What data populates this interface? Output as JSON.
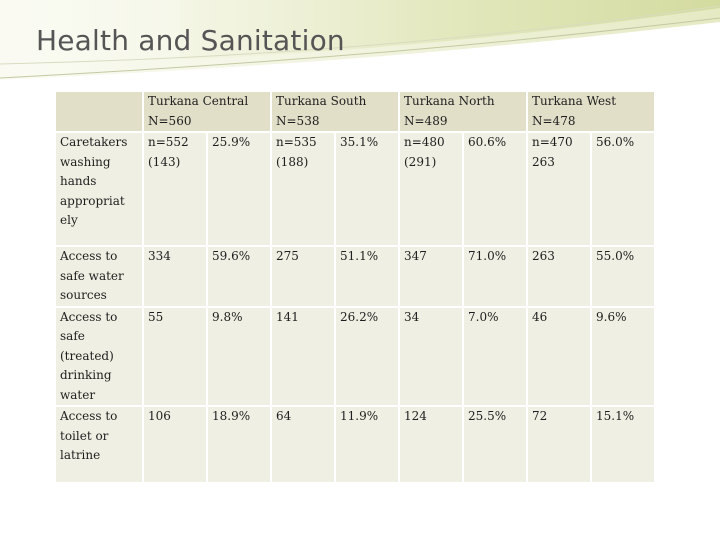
{
  "slide": {
    "title": "Health and Sanitation"
  },
  "table": {
    "regions": [
      {
        "name": "Turkana Central",
        "n": "N=560"
      },
      {
        "name": "Turkana South",
        "n": "N=538"
      },
      {
        "name": "Turkana North",
        "n": "N=489"
      },
      {
        "name": "Turkana West",
        "n": "N=478"
      }
    ],
    "rows": [
      {
        "label": "Caretakers washing hands appropriat ely",
        "cells": [
          {
            "count": "n=552",
            "sub": "(143)",
            "pct": "25.9%"
          },
          {
            "count": "n=535",
            "sub": "(188)",
            "pct": "35.1%"
          },
          {
            "count": "n=480",
            "sub": "(291)",
            "pct": "60.6%"
          },
          {
            "count": "n=470",
            "sub": "263",
            "pct": "56.0%"
          }
        ]
      },
      {
        "label": "Access to safe water sources",
        "cells": [
          {
            "count": "334",
            "sub": "",
            "pct": "59.6%"
          },
          {
            "count": "275",
            "sub": "",
            "pct": "51.1%"
          },
          {
            "count": "347",
            "sub": "",
            "pct": "71.0%"
          },
          {
            "count": "263",
            "sub": "",
            "pct": "55.0%"
          }
        ]
      },
      {
        "label": "Access to safe (treated) drinking water",
        "cells": [
          {
            "count": "55",
            "sub": "",
            "pct": "9.8%"
          },
          {
            "count": "141",
            "sub": "",
            "pct": "26.2%"
          },
          {
            "count": "34",
            "sub": "",
            "pct": "7.0%"
          },
          {
            "count": "46",
            "sub": "",
            "pct": "9.6%"
          }
        ]
      },
      {
        "label": "Access to toilet or latrine",
        "cells": [
          {
            "count": "106",
            "sub": "",
            "pct": "18.9%"
          },
          {
            "count": "64",
            "sub": "",
            "pct": "11.9%"
          },
          {
            "count": "124",
            "sub": "",
            "pct": "25.5%"
          },
          {
            "count": "72",
            "sub": "",
            "pct": "15.1%"
          }
        ]
      }
    ]
  },
  "colors": {
    "header_fill": "#e1dfc8",
    "cell_fill": "#f0efe3",
    "title": "#555555"
  }
}
